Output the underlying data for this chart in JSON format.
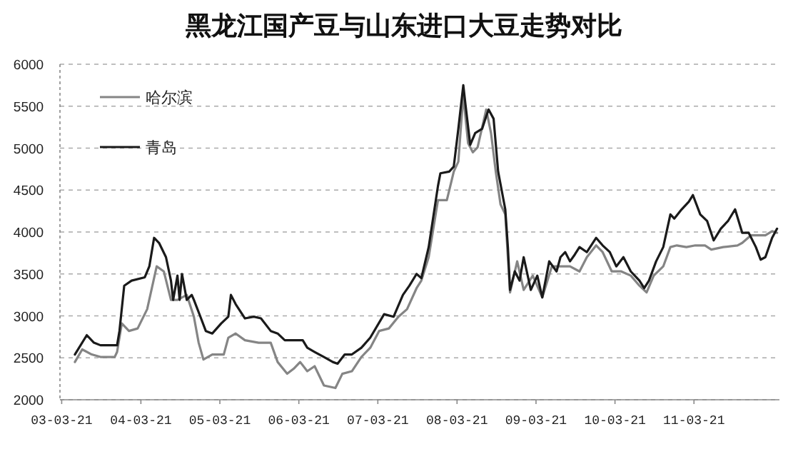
{
  "chart_data": {
    "type": "line",
    "title": "黑龙江国产豆与山东进口大豆走势对比",
    "xlim": [
      "2003-03-13",
      "2012-04-19"
    ],
    "xticks": [
      {
        "value": "2003-03-21",
        "label": "03-03-21"
      },
      {
        "value": "2004-03-21",
        "label": "04-03-21"
      },
      {
        "value": "2005-03-21",
        "label": "05-03-21"
      },
      {
        "value": "2006-03-21",
        "label": "06-03-21"
      },
      {
        "value": "2007-03-21",
        "label": "07-03-21"
      },
      {
        "value": "2008-03-21",
        "label": "08-03-21"
      },
      {
        "value": "2009-03-21",
        "label": "09-03-21"
      },
      {
        "value": "2010-03-21",
        "label": "10-03-21"
      },
      {
        "value": "2011-03-21",
        "label": "11-03-21"
      }
    ],
    "ylim": [
      2000,
      6000
    ],
    "yticks": [
      2000,
      2500,
      3000,
      3500,
      4000,
      4500,
      5000,
      5500,
      6000
    ],
    "grid": "y",
    "legend": "top left",
    "series": [
      {
        "name": "哈尔滨",
        "color": "#858585",
        "x": [
          "2003-05-21",
          "2003-06-24",
          "2003-08-07",
          "2003-09-16",
          "2003-11-21",
          "2003-12-02",
          "2003-12-24",
          "2004-01-26",
          "2004-03-06",
          "2004-04-19",
          "2004-06-02",
          "2004-07-05",
          "2004-08-07",
          "2004-09-06",
          "2004-10-19",
          "2004-11-21",
          "2004-12-13",
          "2005-01-04",
          "2005-02-14",
          "2005-04-08",
          "2005-04-29",
          "2005-06-02",
          "2005-07-15",
          "2005-09-16",
          "2005-11-11",
          "2005-12-13",
          "2006-01-26",
          "2006-02-25",
          "2006-03-27",
          "2006-04-29",
          "2006-06-02",
          "2006-07-15",
          "2006-09-06",
          "2006-10-08",
          "2006-11-21",
          "2007-01-04",
          "2007-02-14",
          "2007-03-27",
          "2007-05-11",
          "2007-06-24",
          "2007-08-03",
          "2007-09-16",
          "2007-10-08",
          "2007-11-11",
          "2007-12-24",
          "2008-02-03",
          "2008-03-06",
          "2008-03-27",
          "2008-04-19",
          "2008-05-11",
          "2008-06-02",
          "2008-06-24",
          "2008-08-03",
          "2008-08-25",
          "2008-09-16",
          "2008-10-08",
          "2008-10-30",
          "2008-11-21",
          "2008-12-24",
          "2009-01-23",
          "2009-03-06",
          "2009-04-19",
          "2009-06-02",
          "2009-07-12",
          "2009-08-25",
          "2009-10-08",
          "2009-11-11",
          "2009-12-24",
          "2010-01-23",
          "2010-03-06",
          "2010-04-19",
          "2010-06-02",
          "2010-07-12",
          "2010-08-14",
          "2010-09-16",
          "2010-10-30",
          "2010-12-02",
          "2011-01-01",
          "2011-02-14",
          "2011-03-27",
          "2011-05-11",
          "2011-06-09",
          "2011-08-03",
          "2011-10-08",
          "2011-10-30",
          "2011-12-09",
          "2012-02-14",
          "2012-03-16",
          "2012-04-08"
        ],
        "values": [
          2450,
          2600,
          2540,
          2510,
          2510,
          2570,
          2910,
          2820,
          2850,
          3080,
          3590,
          3530,
          3190,
          3190,
          3250,
          2990,
          2680,
          2480,
          2540,
          2540,
          2740,
          2790,
          2710,
          2680,
          2680,
          2450,
          2310,
          2370,
          2450,
          2340,
          2400,
          2170,
          2140,
          2310,
          2340,
          2510,
          2620,
          2820,
          2850,
          2990,
          3080,
          3330,
          3420,
          3700,
          4380,
          4380,
          4720,
          4840,
          5630,
          5060,
          4950,
          5010,
          5460,
          5180,
          4720,
          4330,
          4210,
          3280,
          3650,
          3310,
          3480,
          3220,
          3590,
          3590,
          3590,
          3530,
          3700,
          3840,
          3760,
          3530,
          3530,
          3480,
          3360,
          3280,
          3480,
          3590,
          3820,
          3840,
          3820,
          3840,
          3840,
          3790,
          3820,
          3840,
          3870,
          3960,
          3960,
          4010,
          3990
        ]
      },
      {
        "name": "青岛",
        "color": "#1a1a1a",
        "x": [
          "2003-05-21",
          "2003-07-15",
          "2003-08-17",
          "2003-09-16",
          "2003-12-02",
          "2003-12-13",
          "2004-01-04",
          "2004-02-07",
          "2004-04-08",
          "2004-04-29",
          "2004-05-21",
          "2004-06-13",
          "2004-07-15",
          "2004-08-07",
          "2004-08-17",
          "2004-09-06",
          "2004-09-16",
          "2004-09-27",
          "2004-10-19",
          "2004-11-11",
          "2004-11-21",
          "2004-12-24",
          "2005-01-15",
          "2005-02-14",
          "2005-03-27",
          "2005-04-29",
          "2005-05-11",
          "2005-06-02",
          "2005-07-15",
          "2005-08-25",
          "2005-09-27",
          "2005-11-11",
          "2005-12-13",
          "2006-01-15",
          "2006-03-06",
          "2006-04-08",
          "2006-04-29",
          "2006-06-02",
          "2006-07-15",
          "2006-08-25",
          "2006-09-16",
          "2006-10-19",
          "2006-11-21",
          "2007-01-04",
          "2007-02-14",
          "2007-04-19",
          "2007-06-02",
          "2007-07-15",
          "2007-08-14",
          "2007-09-16",
          "2007-10-08",
          "2007-11-11",
          "2007-12-24",
          "2008-01-04",
          "2008-02-14",
          "2008-03-06",
          "2008-03-27",
          "2008-04-19",
          "2008-04-29",
          "2008-05-21",
          "2008-06-13",
          "2008-07-15",
          "2008-08-03",
          "2008-08-14",
          "2008-09-06",
          "2008-09-27",
          "2008-10-30",
          "2008-11-11",
          "2008-11-21",
          "2008-12-13",
          "2009-01-04",
          "2009-01-23",
          "2009-02-25",
          "2009-03-27",
          "2009-04-19",
          "2009-05-21",
          "2009-06-24",
          "2009-07-12",
          "2009-08-03",
          "2009-08-25",
          "2009-09-16",
          "2009-10-08",
          "2009-11-11",
          "2009-12-24",
          "2010-01-23",
          "2010-02-25",
          "2010-03-27",
          "2010-04-29",
          "2010-06-02",
          "2010-07-12",
          "2010-08-03",
          "2010-08-25",
          "2010-09-27",
          "2010-10-30",
          "2010-12-02",
          "2010-12-20",
          "2011-01-23",
          "2011-02-25",
          "2011-03-16",
          "2011-04-19",
          "2011-05-21",
          "2011-06-20",
          "2011-07-23",
          "2011-08-25",
          "2011-09-27",
          "2011-10-30",
          "2011-11-29",
          "2012-01-01",
          "2012-01-23",
          "2012-02-14",
          "2012-03-16",
          "2012-04-08"
        ],
        "values": [
          2540,
          2770,
          2680,
          2650,
          2650,
          2820,
          3360,
          3420,
          3460,
          3590,
          3930,
          3870,
          3700,
          3420,
          3190,
          3480,
          3190,
          3500,
          3190,
          3250,
          3190,
          2970,
          2820,
          2790,
          2910,
          2990,
          3250,
          3140,
          2970,
          2990,
          2970,
          2820,
          2790,
          2710,
          2710,
          2710,
          2620,
          2570,
          2510,
          2450,
          2430,
          2540,
          2540,
          2620,
          2740,
          3020,
          2990,
          3250,
          3360,
          3500,
          3450,
          3820,
          4550,
          4700,
          4720,
          4780,
          5230,
          5750,
          5520,
          5040,
          5180,
          5230,
          5380,
          5460,
          5350,
          4720,
          4270,
          3820,
          3310,
          3530,
          3420,
          3700,
          3310,
          3480,
          3220,
          3650,
          3530,
          3700,
          3760,
          3650,
          3730,
          3820,
          3760,
          3930,
          3840,
          3760,
          3590,
          3700,
          3530,
          3420,
          3330,
          3420,
          3650,
          3820,
          4210,
          4160,
          4270,
          4360,
          4440,
          4210,
          4130,
          3900,
          4040,
          4130,
          4270,
          3990,
          3990,
          3820,
          3670,
          3700,
          3930,
          4040
        ]
      }
    ]
  }
}
